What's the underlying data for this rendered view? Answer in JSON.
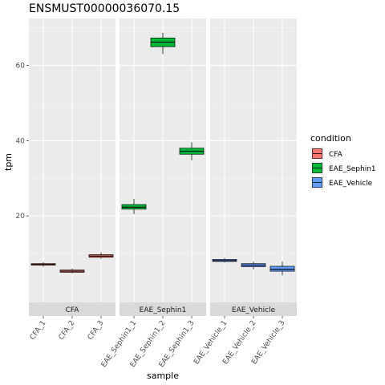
{
  "chart_data": {
    "type": "box",
    "title": "ENSMUST00000036070.15",
    "xlabel": "sample",
    "ylabel": "tpm",
    "ylim": [
      -3,
      72.5
    ],
    "yticks": [
      20,
      40,
      60
    ],
    "facets": [
      "CFA",
      "EAE_Sephin1",
      "EAE_Vehicle"
    ],
    "legend": {
      "title": "condition",
      "position": "right",
      "entries": [
        {
          "label": "CFA",
          "color": "#F8766D"
        },
        {
          "label": "EAE_Sephin1",
          "color": "#00BA38"
        },
        {
          "label": "EAE_Vehicle",
          "color": "#619CFF"
        }
      ]
    },
    "boxes": [
      {
        "facet": "CFA",
        "sample": "CFA_1",
        "condition": "CFA",
        "min": 6.5,
        "q1": 6.9,
        "median": 7.1,
        "q3": 7.3,
        "max": 7.7
      },
      {
        "facet": "CFA",
        "sample": "CFA_2",
        "condition": "CFA",
        "min": 4.7,
        "q1": 5.0,
        "median": 5.3,
        "q3": 5.6,
        "max": 6.0
      },
      {
        "facet": "CFA",
        "sample": "CFA_3",
        "condition": "CFA",
        "min": 8.6,
        "q1": 9.0,
        "median": 9.3,
        "q3": 9.7,
        "max": 10.3
      },
      {
        "facet": "EAE_Sephin1",
        "sample": "EAE_Sephin1_1",
        "condition": "EAE_Sephin1",
        "min": 20.5,
        "q1": 21.8,
        "median": 22.3,
        "q3": 23.0,
        "max": 24.5
      },
      {
        "facet": "EAE_Sephin1",
        "sample": "EAE_Sephin1_2",
        "condition": "EAE_Sephin1",
        "min": 63.0,
        "q1": 65.0,
        "median": 66.2,
        "q3": 67.3,
        "max": 68.7
      },
      {
        "facet": "EAE_Sephin1",
        "sample": "EAE_Sephin1_3",
        "condition": "EAE_Sephin1",
        "min": 34.8,
        "q1": 36.4,
        "median": 37.2,
        "q3": 38.0,
        "max": 39.6
      },
      {
        "facet": "EAE_Vehicle",
        "sample": "EAE_Vehicle_1",
        "condition": "EAE_Vehicle",
        "min": 7.6,
        "q1": 7.9,
        "median": 8.1,
        "q3": 8.4,
        "max": 8.8
      },
      {
        "facet": "EAE_Vehicle",
        "sample": "EAE_Vehicle_2",
        "condition": "EAE_Vehicle",
        "min": 5.8,
        "q1": 6.5,
        "median": 6.9,
        "q3": 7.3,
        "max": 7.8
      },
      {
        "facet": "EAE_Vehicle",
        "sample": "EAE_Vehicle_3",
        "condition": "EAE_Vehicle",
        "min": 4.2,
        "q1": 5.3,
        "median": 5.8,
        "q3": 6.6,
        "max": 7.9
      }
    ],
    "grid": true,
    "panel_background": "#EBEBEB",
    "strip_background": "#D9D9D9"
  }
}
